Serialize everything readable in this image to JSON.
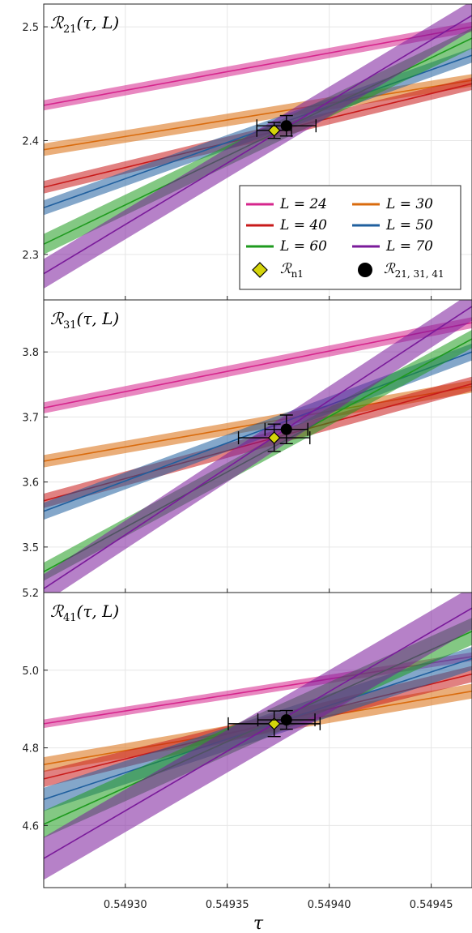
{
  "chart_data": {
    "type": "line",
    "xlabel": "τ",
    "xlim": [
      0.54926,
      0.54947
    ],
    "x_ticks": [
      0.5493,
      0.54935,
      0.5494,
      0.54945
    ],
    "x_tick_labels": [
      "0.54930",
      "0.54935",
      "0.54940",
      "0.54945"
    ],
    "grid": true,
    "series_styles": [
      {
        "name": "L = 24",
        "color": "#d6258c"
      },
      {
        "name": "L = 30",
        "color": "#d96b0d"
      },
      {
        "name": "L = 40",
        "color": "#c81a1a"
      },
      {
        "name": "L = 50",
        "color": "#1f5f9e"
      },
      {
        "name": "L = 60",
        "color": "#1e9a1e"
      },
      {
        "name": "L = 70",
        "color": "#7a1a9a"
      }
    ],
    "marker_styles": {
      "Rn1": {
        "label": "ℛ",
        "sub": "n1",
        "shape": "diamond",
        "color": "#d4d40a"
      },
      "R213141": {
        "label": "ℛ",
        "sub": "21, 31, 41",
        "shape": "circle",
        "color": "#000000"
      }
    },
    "legend": {
      "placement": "lower-right of top panel",
      "columns": 2
    },
    "panels": [
      {
        "title": "ℛ",
        "title_sub": "21",
        "title_args": "(τ, L)",
        "ylim": [
          2.26,
          2.52
        ],
        "y_ticks": [
          2.3,
          2.4,
          2.5
        ],
        "y_tick_labels": [
          "2.3",
          "2.4",
          "2.5"
        ],
        "show_legend": true,
        "series": [
          {
            "name": "L = 24",
            "y_start": 2.431,
            "y_end": 2.5,
            "band": 0.0045
          },
          {
            "name": "L = 30",
            "y_start": 2.392,
            "y_end": 2.453,
            "band": 0.0055
          },
          {
            "name": "L = 40",
            "y_start": 2.359,
            "y_end": 2.45,
            "band": 0.0055
          },
          {
            "name": "L = 50",
            "y_start": 2.341,
            "y_end": 2.475,
            "band": 0.0065
          },
          {
            "name": "L = 60",
            "y_start": 2.309,
            "y_end": 2.49,
            "band": 0.009
          },
          {
            "name": "L = 70",
            "y_start": 2.283,
            "y_end": 2.51,
            "band": 0.013
          }
        ],
        "points": [
          {
            "id": "Rn1",
            "x": 0.549373,
            "y": 2.409,
            "xerr": 8.5e-06,
            "yerr": 0.007
          },
          {
            "id": "R213141",
            "x": 0.549379,
            "y": 2.413,
            "xerr": 1.45e-05,
            "yerr": 0.009
          }
        ]
      },
      {
        "title": "ℛ",
        "title_sub": "31",
        "title_args": "(τ, L)",
        "ylim": [
          3.43,
          3.88
        ],
        "y_ticks": [
          3.5,
          3.6,
          3.7,
          3.8
        ],
        "y_tick_labels": [
          "3.5",
          "3.6",
          "3.7",
          "3.8"
        ],
        "show_legend": false,
        "series": [
          {
            "name": "L = 24",
            "y_start": 3.714,
            "y_end": 3.845,
            "band": 0.0085
          },
          {
            "name": "L = 30",
            "y_start": 3.632,
            "y_end": 3.747,
            "band": 0.0095
          },
          {
            "name": "L = 40",
            "y_start": 3.571,
            "y_end": 3.751,
            "band": 0.011
          },
          {
            "name": "L = 50",
            "y_start": 3.555,
            "y_end": 3.8,
            "band": 0.013
          },
          {
            "name": "L = 60",
            "y_start": 3.462,
            "y_end": 3.82,
            "band": 0.014
          },
          {
            "name": "L = 70",
            "y_start": 3.436,
            "y_end": 3.87,
            "band": 0.022
          }
        ],
        "points": [
          {
            "id": "Rn1",
            "x": 0.549373,
            "y": 3.668,
            "xerr": 1.75e-05,
            "yerr": 0.021
          },
          {
            "id": "R213141",
            "x": 0.549379,
            "y": 3.681,
            "xerr": 1.05e-05,
            "yerr": 0.022
          }
        ]
      },
      {
        "title": "ℛ",
        "title_sub": "41",
        "title_args": "(τ, L)",
        "ylim": [
          4.44,
          5.2
        ],
        "y_ticks": [
          4.6,
          4.8,
          5.0,
          5.2
        ],
        "y_tick_labels": [
          "4.6",
          "4.8",
          "5.0",
          "5.2"
        ],
        "show_legend": false,
        "series": [
          {
            "name": "L = 24",
            "y_start": 4.862,
            "y_end": 5.035,
            "band": 0.011
          },
          {
            "name": "L = 30",
            "y_start": 4.757,
            "y_end": 4.946,
            "band": 0.019
          },
          {
            "name": "L = 40",
            "y_start": 4.72,
            "y_end": 4.99,
            "band": 0.021
          },
          {
            "name": "L = 50",
            "y_start": 4.667,
            "y_end": 5.03,
            "band": 0.03
          },
          {
            "name": "L = 60",
            "y_start": 4.603,
            "y_end": 5.1,
            "band": 0.035
          },
          {
            "name": "L = 70",
            "y_start": 4.515,
            "y_end": 5.16,
            "band": 0.055
          }
        ],
        "points": [
          {
            "id": "Rn1",
            "x": 0.549373,
            "y": 4.862,
            "xerr": 2.25e-05,
            "yerr": 0.033
          },
          {
            "id": "R213141",
            "x": 0.549379,
            "y": 4.872,
            "xerr": 1.4e-05,
            "yerr": 0.024
          }
        ]
      }
    ]
  }
}
